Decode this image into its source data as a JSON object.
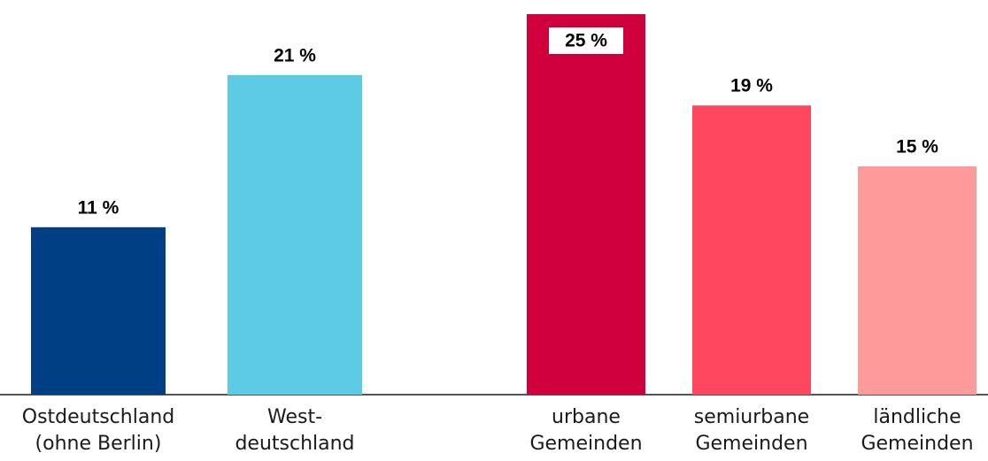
{
  "chart_data": {
    "type": "bar",
    "categories": [
      [
        "Ostdeutschland",
        "(ohne Berlin)"
      ],
      [
        "West-",
        "deutschland"
      ],
      [
        "urbane",
        "Gemeinden"
      ],
      [
        "semiurbane",
        "Gemeinden"
      ],
      [
        "ländliche",
        "Gemeinden"
      ]
    ],
    "values": [
      11,
      21,
      25,
      19,
      15
    ],
    "value_labels": [
      "11 %",
      "21 %",
      "25 %",
      "19 %",
      "15 %"
    ],
    "colors": [
      "#003f84",
      "#5ccbe3",
      "#cf003c",
      "#ff4760",
      "#ff9a9b"
    ],
    "ylim": [
      0,
      25
    ]
  }
}
